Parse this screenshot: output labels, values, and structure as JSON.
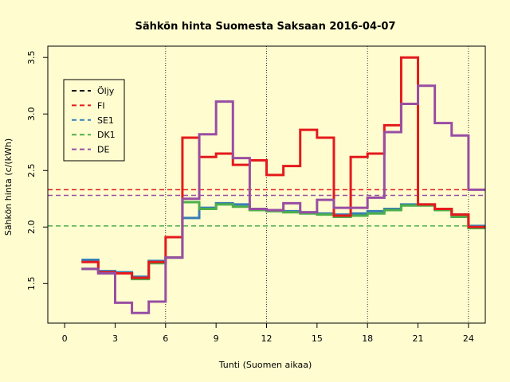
{
  "chart_data": {
    "type": "line",
    "title": "Sähkön hinta Suomesta Saksaan 2016-04-07",
    "xlabel": "Tunti (Suomen aikaa)",
    "ylabel": "Sähkön hinta (c/(kWh)",
    "xlim": [
      -1,
      25
    ],
    "ylim": [
      1.15,
      3.6
    ],
    "x_ticks": [
      0,
      3,
      6,
      9,
      12,
      15,
      18,
      21,
      24
    ],
    "y_ticks": [
      1.5,
      2.0,
      2.5,
      3.0,
      3.5
    ],
    "y_tick_labels": [
      "1.5",
      "2.0",
      "2.5",
      "3.0",
      "3.5"
    ],
    "vertical_gridlines": [
      6,
      12,
      18,
      24
    ],
    "legend_position": "top-left",
    "series": [
      {
        "name": "Öljy",
        "color": "#000000",
        "reference": null,
        "step_values": []
      },
      {
        "name": "FI",
        "color": "#e41a1c",
        "reference": 2.33,
        "step_values": [
          1.69,
          1.6,
          1.59,
          1.55,
          1.69,
          1.91,
          2.79,
          2.62,
          2.65,
          2.55,
          2.59,
          2.46,
          2.54,
          2.86,
          2.79,
          2.1,
          2.62,
          2.65,
          2.9,
          3.5,
          2.2,
          2.16,
          2.11,
          2.0
        ]
      },
      {
        "name": "SE1",
        "color": "#377eb8",
        "reference": null,
        "step_values": [
          1.71,
          1.61,
          1.6,
          1.56,
          1.7,
          1.73,
          2.08,
          2.17,
          2.21,
          2.2,
          2.15,
          2.15,
          2.14,
          2.13,
          2.12,
          2.11,
          2.12,
          2.14,
          2.16,
          2.2,
          2.2,
          2.16,
          2.11,
          2.01
        ]
      },
      {
        "name": "DK1",
        "color": "#4daf4a",
        "reference": 2.01,
        "step_values": [
          1.63,
          1.59,
          1.59,
          1.54,
          1.68,
          1.73,
          2.22,
          2.16,
          2.2,
          2.18,
          2.15,
          2.14,
          2.13,
          2.12,
          2.11,
          2.09,
          2.1,
          2.12,
          2.15,
          2.19,
          2.19,
          2.15,
          2.09,
          1.99
        ]
      },
      {
        "name": "DE",
        "color": "#984ea3",
        "reference": 2.28,
        "step_values": [
          1.63,
          1.59,
          1.33,
          1.24,
          1.34,
          1.73,
          2.25,
          2.82,
          3.11,
          2.61,
          2.16,
          2.15,
          2.21,
          2.13,
          2.24,
          2.17,
          2.17,
          2.26,
          2.84,
          3.09,
          3.25,
          2.92,
          2.81,
          2.33
        ]
      }
    ]
  }
}
